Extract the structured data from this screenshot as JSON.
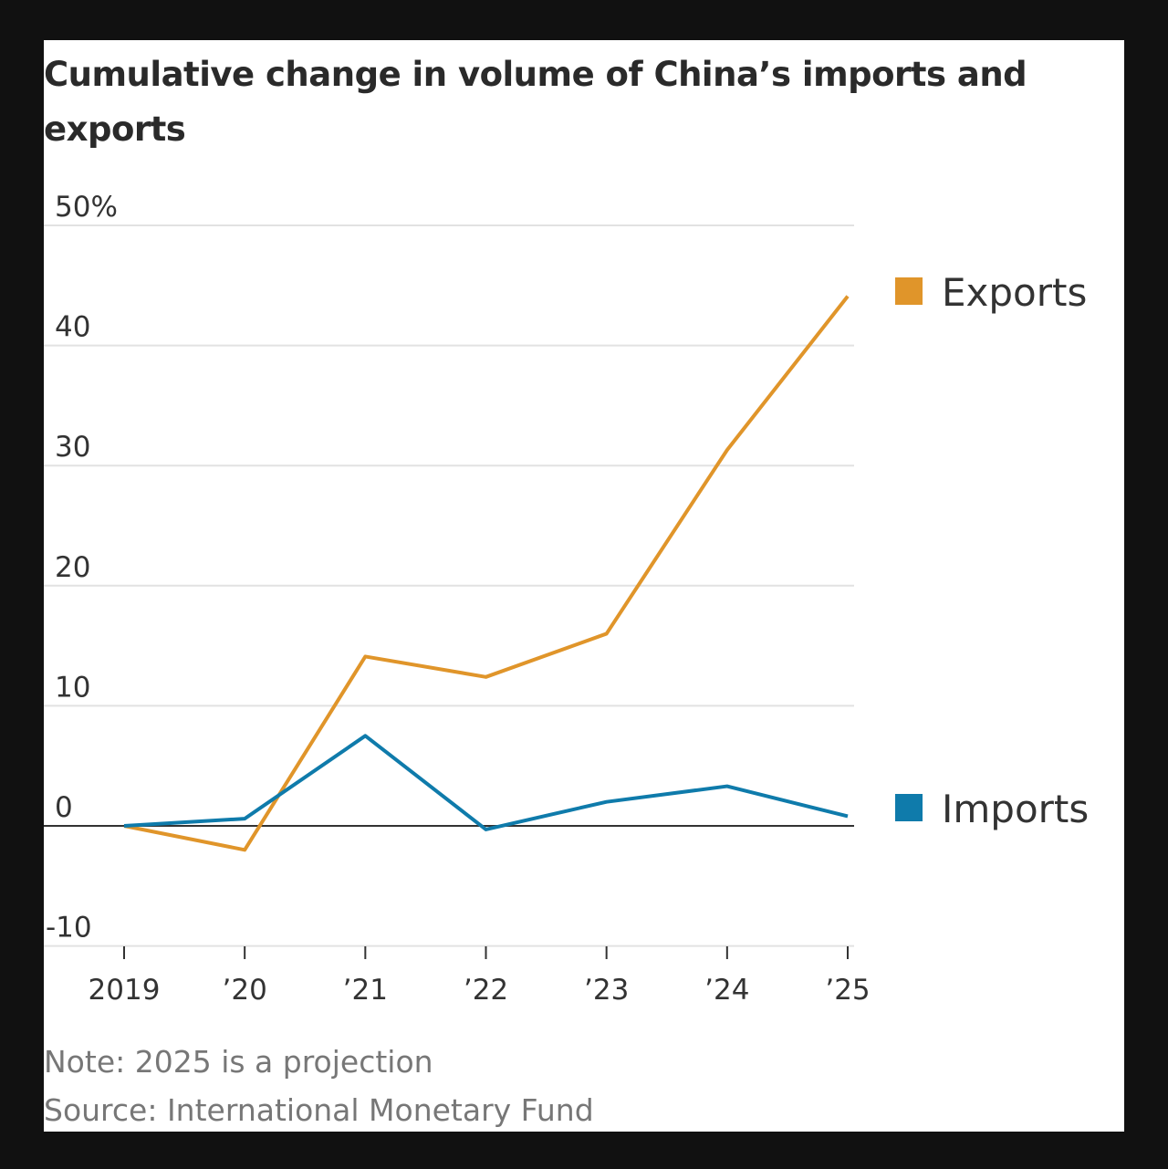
{
  "chart_data": {
    "type": "line",
    "title": "Cumulative change in volume of China’s imports and exports",
    "categories": [
      "2019",
      "’20",
      "’21",
      "’22",
      "’23",
      "’24",
      "’25"
    ],
    "y_ticks": [
      "50%",
      "40",
      "30",
      "20",
      "10",
      "0",
      "-10"
    ],
    "y_tick_values": [
      50,
      40,
      30,
      20,
      10,
      0,
      -10
    ],
    "ylim": [
      -10,
      50
    ],
    "grid": true,
    "legend": "right",
    "series": [
      {
        "name": "Exports",
        "color": "#e0952a",
        "values": [
          0,
          -2.0,
          14.1,
          12.4,
          16.0,
          31.3,
          44.1
        ]
      },
      {
        "name": "Imports",
        "color": "#0f7bab",
        "values": [
          0,
          0.6,
          7.5,
          -0.3,
          2.0,
          3.3,
          0.8
        ]
      }
    ],
    "note": "Note: 2025 is a projection",
    "source": "Source: International Monetary Fund"
  }
}
